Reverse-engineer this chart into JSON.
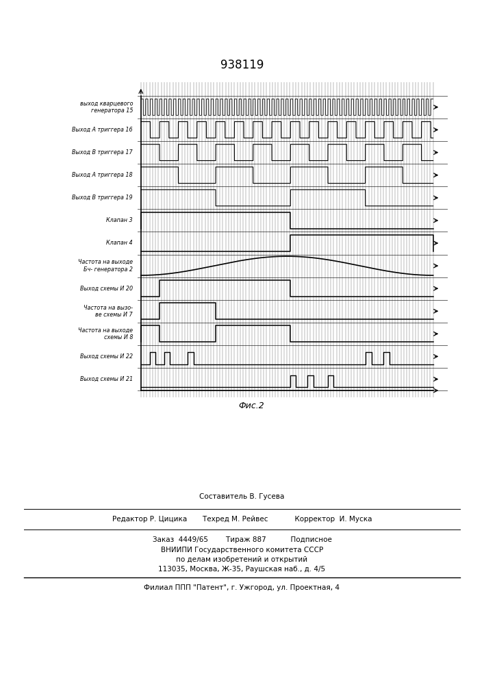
{
  "title": "938119",
  "fig_label": "Фис.2",
  "background_color": "#ffffff",
  "row_labels": [
    "выход кварцевого\nгенератора 15",
    "Выход A триггера 16",
    "Выход B триггера 17",
    "Выход A триггера 18",
    "Выход B триггера 19",
    "Клапан 3",
    "Клапан 4",
    "Частота на выходе\nБч- генератора 2",
    "Выход схемы И 20",
    "Частота на вызо-\nве схемы И 7",
    "Частота на выходе\nсхемы И 8",
    "Выход схемы И 22",
    "Выход схемы И 21"
  ],
  "footer_text1": "Составитель В. Гусева",
  "footer_text2": "Редактор Р. Цицика       Техред М. Рейвес            Корректор  И. Муска",
  "footer_text3": "Заказ  4449/65        Тираж 887           Подписное",
  "footer_text4": "ВНИИПИ Государственного комитета СССР",
  "footer_text5": "по делам изобретений и открытий",
  "footer_text6": "113035, Москва, Ж-35, Раушская наб., д. 4/5",
  "footer_text7": "Филиал ППП \"Патент\", г. Ужгород, ул. Проектная, 4"
}
